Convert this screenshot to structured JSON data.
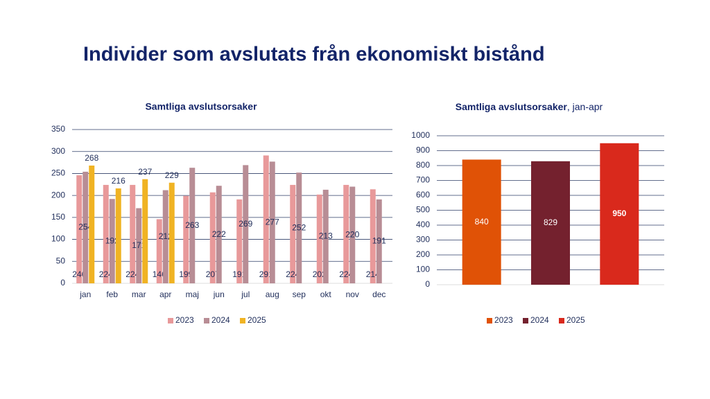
{
  "title": "Individer som avslutats från ekonomiskt bistånd",
  "chart_data": [
    {
      "type": "bar",
      "title": "Samtliga avslutsorsaker",
      "categories": [
        "jan",
        "feb",
        "mar",
        "apr",
        "maj",
        "jun",
        "jul",
        "aug",
        "sep",
        "okt",
        "nov",
        "dec"
      ],
      "series": [
        {
          "name": "2023",
          "color": "#e8999a",
          "values": [
            246,
            224,
            224,
            146,
            199,
            207,
            191,
            291,
            224,
            202,
            224,
            214
          ]
        },
        {
          "name": "2024",
          "color": "#b88d95",
          "values": [
            254,
            192,
            171,
            212,
            263,
            222,
            269,
            277,
            252,
            213,
            220,
            191
          ]
        },
        {
          "name": "2025",
          "color": "#f0b323",
          "values": [
            268,
            216,
            237,
            229,
            null,
            null,
            null,
            null,
            null,
            null,
            null,
            null
          ]
        }
      ],
      "ylim": [
        0,
        350
      ],
      "yticks": [
        0,
        50,
        100,
        150,
        200,
        250,
        300,
        350
      ],
      "grid": true,
      "legend": "bottom"
    },
    {
      "type": "bar",
      "title": "Samtliga avslutsorsaker",
      "subtitle": ", jan-apr",
      "categories": [
        "2023",
        "2024",
        "2025"
      ],
      "values": [
        840,
        829,
        950
      ],
      "colors": [
        "#e05206",
        "#74212e",
        "#d9291c"
      ],
      "ylim": [
        0,
        1000
      ],
      "yticks": [
        0,
        100,
        200,
        300,
        400,
        500,
        600,
        700,
        800,
        900,
        1000
      ],
      "grid": true,
      "legend": "bottom"
    }
  ]
}
